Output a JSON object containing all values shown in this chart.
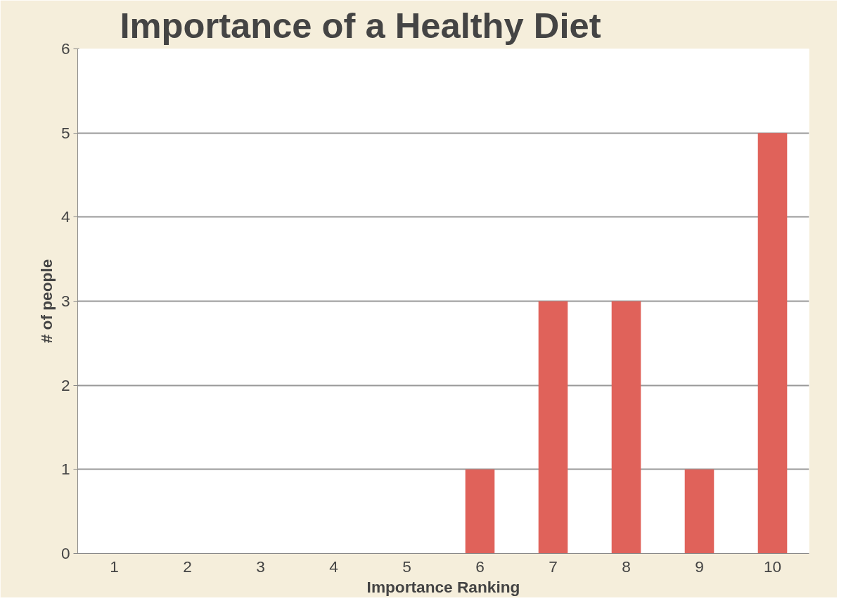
{
  "chart_data": {
    "type": "bar",
    "title": "Importance of a Healthy Diet",
    "xlabel": "Importance Ranking",
    "ylabel": "# of people",
    "categories": [
      "1",
      "2",
      "3",
      "4",
      "5",
      "6",
      "7",
      "8",
      "9",
      "10"
    ],
    "values": [
      0,
      0,
      0,
      0,
      0,
      1,
      3,
      3,
      1,
      5
    ],
    "color": "#e0625a",
    "ylim": [
      0,
      6
    ],
    "yticks": [
      0,
      1,
      2,
      3,
      4,
      5,
      6
    ],
    "grid": "y"
  }
}
